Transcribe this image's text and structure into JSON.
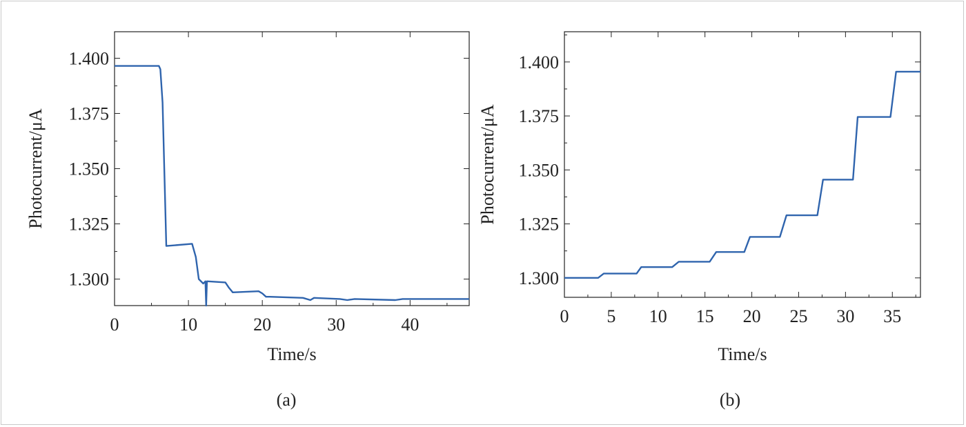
{
  "chart_data": [
    {
      "type": "line",
      "caption": "(a)",
      "xlabel": "Time/s",
      "ylabel": "Photocurrent/μA",
      "xlim": [
        0,
        48
      ],
      "ylim": [
        1.288,
        1.412
      ],
      "xticks": [
        0,
        10,
        20,
        30,
        40
      ],
      "yticks": [
        1.3,
        1.325,
        1.35,
        1.375,
        1.4
      ],
      "ytick_labels": [
        "1.300",
        "1.325",
        "1.350",
        "1.375",
        "1.400"
      ],
      "series": [
        {
          "color": "#2f64ad",
          "x": [
            0,
            6.0,
            6.2,
            6.5,
            7.0,
            10.5,
            11.0,
            11.4,
            12.0,
            12.3,
            12.4,
            12.5,
            12.6,
            15.0,
            15.5,
            16.0,
            19.5,
            20.0,
            20.5,
            21.0,
            25.5,
            26.5,
            27.0,
            30.5,
            31.5,
            32.5,
            38.0,
            39.0,
            48.0
          ],
          "y": [
            1.3965,
            1.3965,
            1.395,
            1.38,
            1.315,
            1.316,
            1.31,
            1.3,
            1.298,
            1.299,
            1.288,
            1.299,
            1.299,
            1.2985,
            1.296,
            1.294,
            1.2945,
            1.2935,
            1.292,
            1.292,
            1.2915,
            1.2905,
            1.2915,
            1.291,
            1.2905,
            1.291,
            1.2905,
            1.291,
            1.291
          ]
        }
      ]
    },
    {
      "type": "line",
      "caption": "(b)",
      "xlabel": "Time/s",
      "ylabel": "Photocurrent/μA",
      "xlim": [
        0,
        38
      ],
      "ylim": [
        1.291,
        1.414
      ],
      "xticks": [
        0,
        5,
        10,
        15,
        20,
        25,
        30,
        35
      ],
      "yticks": [
        1.3,
        1.325,
        1.35,
        1.375,
        1.4
      ],
      "ytick_labels": [
        "1.300",
        "1.325",
        "1.350",
        "1.375",
        "1.400"
      ],
      "series": [
        {
          "color": "#2f64ad",
          "x": [
            0,
            3.6,
            4.2,
            7.7,
            8.2,
            11.5,
            12.2,
            15.5,
            16.2,
            19.2,
            19.8,
            23.0,
            23.7,
            27.0,
            27.6,
            30.8,
            31.3,
            34.8,
            35.4,
            38.0
          ],
          "y": [
            1.3,
            1.3,
            1.302,
            1.302,
            1.305,
            1.305,
            1.3075,
            1.3075,
            1.312,
            1.312,
            1.319,
            1.319,
            1.329,
            1.329,
            1.3455,
            1.3455,
            1.3745,
            1.3745,
            1.3955,
            1.3955
          ]
        }
      ]
    }
  ]
}
